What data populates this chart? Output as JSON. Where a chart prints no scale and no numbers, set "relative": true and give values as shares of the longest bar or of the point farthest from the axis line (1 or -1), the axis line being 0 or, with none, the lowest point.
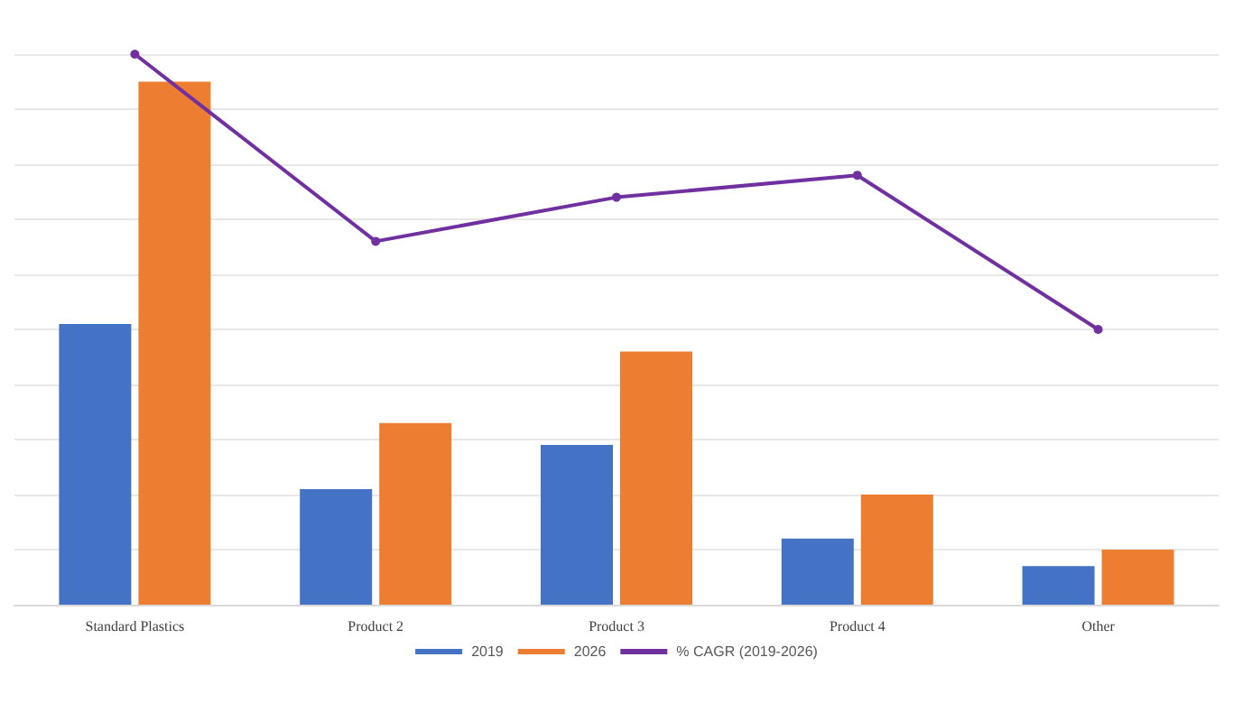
{
  "chart_data": {
    "type": "bar",
    "relative": true,
    "categories": [
      "Standard Plastics",
      "Product 2",
      "Product 3",
      "Product 4",
      "Other"
    ],
    "series": [
      {
        "name": "2019",
        "color": "#4472c4",
        "values": [
          0.51,
          0.21,
          0.29,
          0.12,
          0.07
        ]
      },
      {
        "name": "2026",
        "color": "#ed7d31",
        "values": [
          0.95,
          0.33,
          0.46,
          0.2,
          0.1
        ]
      },
      {
        "name": "% CAGR (2019-2026)",
        "type": "line",
        "color": "#7030a0",
        "marker": "circle",
        "values": [
          1,
          0.66,
          0.74,
          0.78,
          0.5
        ]
      }
    ],
    "grid": true,
    "legend": "bottom"
  }
}
